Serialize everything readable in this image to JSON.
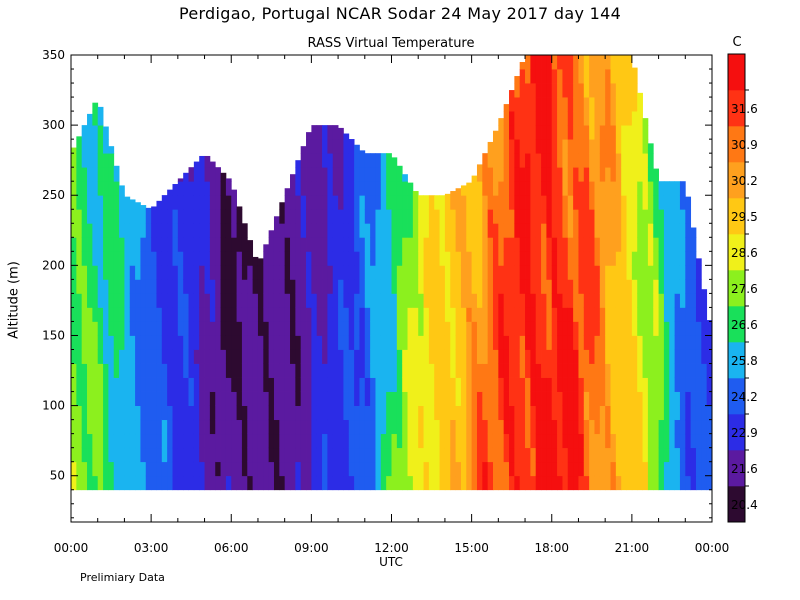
{
  "title": "Perdigao, Portugal  NCAR Sodar  24 May 2017  day 144",
  "subtitle": "RASS Virtual Temperature",
  "footnote": "Prelimiary Data",
  "chart_data": {
    "type": "heatmap",
    "title": "RASS Virtual Temperature",
    "xlabel": "UTC",
    "ylabel": "Altitude (m)",
    "xlim": [
      "00:00",
      "24:00"
    ],
    "ylim": [
      17,
      350
    ],
    "x_ticks": [
      "00:00",
      "03:00",
      "06:00",
      "09:00",
      "12:00",
      "15:00",
      "18:00",
      "21:00",
      "00:00"
    ],
    "x_tick_hours": [
      0,
      3,
      6,
      9,
      12,
      15,
      18,
      21,
      24
    ],
    "y_ticks": [
      50,
      100,
      150,
      200,
      250,
      300,
      350
    ],
    "colorbar": {
      "unit": "C",
      "levels": [
        20.4,
        21.6,
        22.9,
        24.2,
        25.8,
        26.6,
        27.6,
        28.6,
        29.5,
        30.2,
        30.9,
        31.6
      ],
      "colors": [
        "#2d0a30",
        "#5b1aa0",
        "#2c2ce6",
        "#1f5cf0",
        "#1ab4f0",
        "#19e05a",
        "#8cf01e",
        "#f0f01a",
        "#ffc814",
        "#ffa01e",
        "#ff7814",
        "#ff3214",
        "#f50f0f"
      ]
    },
    "series": [
      {
        "hour": 0.0,
        "top_m": 280,
        "mean_temp_c": 27.0
      },
      {
        "hour": 1.0,
        "top_m": 320,
        "mean_temp_c": 26.0
      },
      {
        "hour": 2.0,
        "top_m": 250,
        "mean_temp_c": 25.5
      },
      {
        "hour": 3.0,
        "top_m": 240,
        "mean_temp_c": 23.5
      },
      {
        "hour": 4.0,
        "top_m": 260,
        "mean_temp_c": 22.5
      },
      {
        "hour": 5.0,
        "top_m": 280,
        "mean_temp_c": 21.5
      },
      {
        "hour": 6.0,
        "top_m": 260,
        "mean_temp_c": 20.4
      },
      {
        "hour": 7.0,
        "top_m": 200,
        "mean_temp_c": 20.4
      },
      {
        "hour": 8.0,
        "top_m": 250,
        "mean_temp_c": 20.8
      },
      {
        "hour": 9.0,
        "top_m": 300,
        "mean_temp_c": 21.6
      },
      {
        "hour": 10.0,
        "top_m": 300,
        "mean_temp_c": 22.0
      },
      {
        "hour": 11.0,
        "top_m": 280,
        "mean_temp_c": 23.5
      },
      {
        "hour": 12.0,
        "top_m": 280,
        "mean_temp_c": 26.0
      },
      {
        "hour": 13.0,
        "top_m": 250,
        "mean_temp_c": 27.8
      },
      {
        "hour": 14.0,
        "top_m": 250,
        "mean_temp_c": 29.0
      },
      {
        "hour": 15.0,
        "top_m": 260,
        "mean_temp_c": 30.0
      },
      {
        "hour": 16.0,
        "top_m": 300,
        "mean_temp_c": 30.8
      },
      {
        "hour": 17.0,
        "top_m": 350,
        "mean_temp_c": 31.6
      },
      {
        "hour": 18.0,
        "top_m": 350,
        "mean_temp_c": 31.8
      },
      {
        "hour": 19.0,
        "top_m": 350,
        "mean_temp_c": 31.0
      },
      {
        "hour": 20.0,
        "top_m": 350,
        "mean_temp_c": 30.0
      },
      {
        "hour": 21.0,
        "top_m": 350,
        "mean_temp_c": 28.8
      },
      {
        "hour": 22.0,
        "top_m": 260,
        "mean_temp_c": 26.5
      },
      {
        "hour": 23.0,
        "top_m": 260,
        "mean_temp_c": 23.5
      },
      {
        "hour": 24.0,
        "top_m": 150,
        "mean_temp_c": 22.9
      }
    ],
    "data_floor_m": 40
  }
}
